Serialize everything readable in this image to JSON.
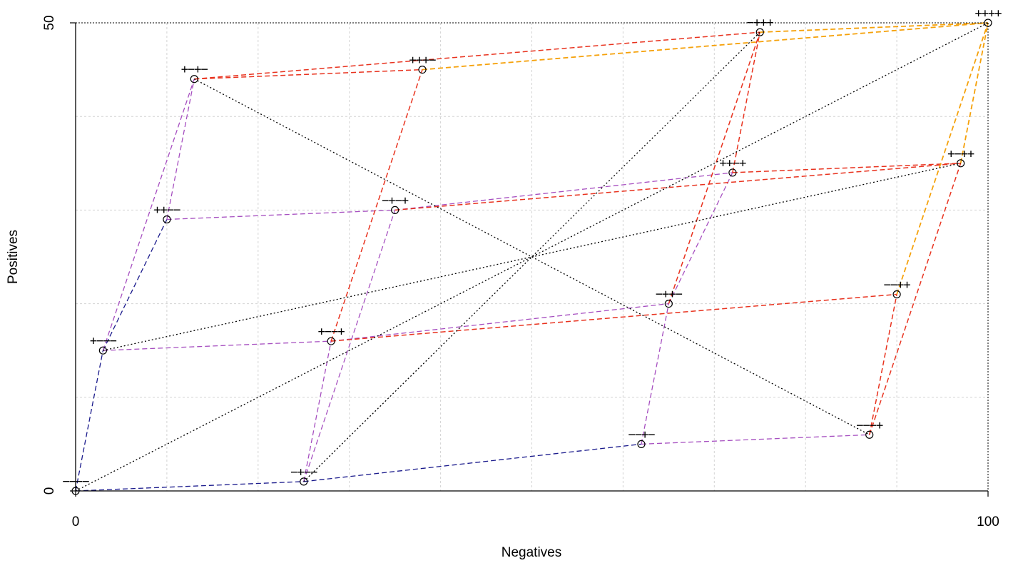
{
  "chart_data": {
    "type": "line",
    "title": "",
    "xlabel": "Negatives",
    "ylabel": "Positives",
    "xlim": [
      0,
      100
    ],
    "ylim": [
      0,
      50
    ],
    "x_ticks": [
      0,
      100
    ],
    "y_ticks": [
      0,
      50
    ],
    "grid": true,
    "point_labels_shown": true,
    "points": [
      {
        "label": "----",
        "x": 0,
        "y": 0
      },
      {
        "label": "+---",
        "x": 3,
        "y": 15
      },
      {
        "label": "-+--",
        "x": 25,
        "y": 1
      },
      {
        "label": "--+-",
        "x": 62,
        "y": 5
      },
      {
        "label": "---+",
        "x": 87,
        "y": 6
      },
      {
        "label": "++--",
        "x": 10,
        "y": 29
      },
      {
        "label": "+-+-",
        "x": 13,
        "y": 44
      },
      {
        "label": "+--+",
        "x": 28,
        "y": 16
      },
      {
        "label": "-++-",
        "x": 65,
        "y": 20
      },
      {
        "label": "-+-+",
        "x": 35,
        "y": 30
      },
      {
        "label": "--++",
        "x": 90,
        "y": 21
      },
      {
        "label": "+++-",
        "x": 38,
        "y": 45
      },
      {
        "label": "++-+",
        "x": 72,
        "y": 34
      },
      {
        "label": "+-++",
        "x": 97,
        "y": 35
      },
      {
        "label": "-+++",
        "x": 75,
        "y": 49
      },
      {
        "label": "++++",
        "x": 100,
        "y": 50
      }
    ],
    "segments": {
      "navy": [
        [
          "----",
          "+---"
        ],
        [
          "----",
          "-+--"
        ],
        [
          "+---",
          "++--"
        ],
        [
          "-+--",
          "--+-"
        ]
      ],
      "purple": [
        [
          "+---",
          "+-+-"
        ],
        [
          "+---",
          "+--+"
        ],
        [
          "-+--",
          "+--+"
        ],
        [
          "-+--",
          "-+-+"
        ],
        [
          "--+-",
          "-++-"
        ],
        [
          "--+-",
          "---+"
        ],
        [
          "++--",
          "+-+-"
        ],
        [
          "++--",
          "-+-+"
        ],
        [
          "-+-+",
          "++-+"
        ],
        [
          "+--+",
          "-++-"
        ],
        [
          "-++-",
          "++-+"
        ]
      ],
      "red": [
        [
          "+-+-",
          "+++-"
        ],
        [
          "+-+-",
          "-+++"
        ],
        [
          "+--+",
          "+++-"
        ],
        [
          "+--+",
          "--++"
        ],
        [
          "-+-+",
          "+-++"
        ],
        [
          "---+",
          "--++"
        ],
        [
          "---+",
          "+-++"
        ],
        [
          "-++-",
          "-+++"
        ],
        [
          "++-+",
          "-+++"
        ],
        [
          "++-+",
          "+-++"
        ]
      ],
      "orange": [
        [
          "+++-",
          "++++"
        ],
        [
          "-+++",
          "++++"
        ],
        [
          "--++",
          "++++"
        ],
        [
          "+-++",
          "++++"
        ]
      ],
      "black_dotted": [
        [
          "----",
          "++++"
        ],
        [
          "+---",
          "+-++"
        ],
        [
          "-+--",
          "-+++"
        ],
        [
          "+-+-",
          "---+"
        ]
      ]
    },
    "colors": {
      "navy": "#1a1a8c",
      "purple": "#a64fc0",
      "red": "#e8321e",
      "orange": "#f5a10a",
      "black_dotted": "#000000",
      "grid": "#d3d3d3",
      "marker": "#000000"
    }
  }
}
